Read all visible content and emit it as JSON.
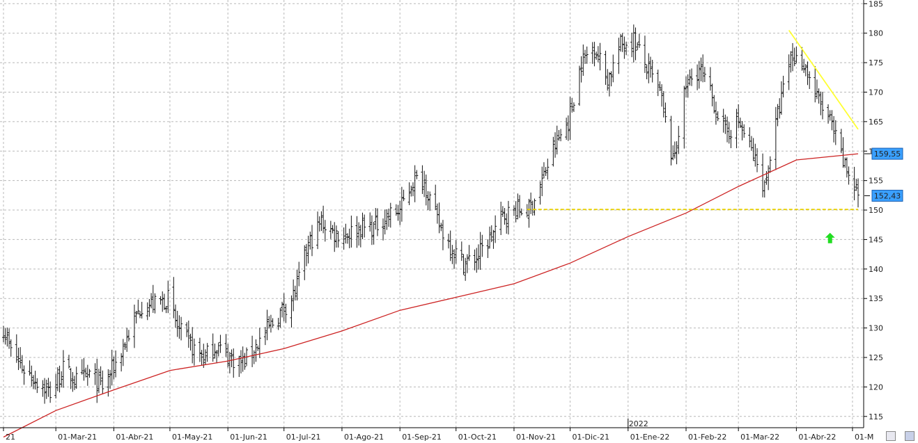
{
  "chart_data": {
    "type": "ohlc",
    "title": "",
    "xlabel": "",
    "ylabel": "",
    "ylim": [
      111,
      185
    ],
    "x_range": [
      "2021-02-01",
      "2022-05-04"
    ],
    "yticks": [
      115,
      120,
      125,
      130,
      135,
      140,
      145,
      150,
      155,
      160,
      165,
      170,
      175,
      180,
      185
    ],
    "x_tick_labels": [
      {
        "date": "2021-02-01",
        "label": "21"
      },
      {
        "date": "2021-03-01",
        "label": "01-Mar-21"
      },
      {
        "date": "2021-04-01",
        "label": "01-Abr-21"
      },
      {
        "date": "2021-05-01",
        "label": "01-May-21"
      },
      {
        "date": "2021-06-01",
        "label": "01-Jun-21"
      },
      {
        "date": "2021-07-01",
        "label": "01-Jul-21"
      },
      {
        "date": "2021-08-01",
        "label": "01-Ago-21"
      },
      {
        "date": "2021-09-01",
        "label": "01-Sep-21"
      },
      {
        "date": "2021-10-01",
        "label": "01-Oct-21"
      },
      {
        "date": "2021-11-01",
        "label": "01-Nov-21"
      },
      {
        "date": "2021-12-01",
        "label": "01-Dic-21"
      },
      {
        "date": "2022-01-01",
        "label": "01-Ene-22"
      },
      {
        "date": "2022-02-01",
        "label": "01-Feb-22"
      },
      {
        "date": "2022-03-01",
        "label": "01-Mar-22"
      },
      {
        "date": "2022-04-01",
        "label": "01-Abr-22"
      },
      {
        "date": "2022-05-01",
        "label": "01-M"
      }
    ],
    "year_marker": {
      "date": "2022-01-01",
      "label": "2022"
    },
    "price_keypoints": [
      [
        "2021-02-01",
        130
      ],
      [
        "2021-02-05",
        126
      ],
      [
        "2021-02-12",
        123
      ],
      [
        "2021-02-19",
        121
      ],
      [
        "2021-02-26",
        119
      ],
      [
        "2021-03-05",
        123
      ],
      [
        "2021-03-12",
        121
      ],
      [
        "2021-03-19",
        122
      ],
      [
        "2021-03-26",
        120
      ],
      [
        "2021-04-02",
        124
      ],
      [
        "2021-04-09",
        129
      ],
      [
        "2021-04-16",
        134
      ],
      [
        "2021-04-23",
        134
      ],
      [
        "2021-04-30",
        135
      ],
      [
        "2021-05-05",
        130
      ],
      [
        "2021-05-12",
        127
      ],
      [
        "2021-05-19",
        125
      ],
      [
        "2021-05-26",
        127
      ],
      [
        "2021-06-02",
        125
      ],
      [
        "2021-06-09",
        124
      ],
      [
        "2021-06-16",
        127
      ],
      [
        "2021-06-23",
        130
      ],
      [
        "2021-06-30",
        133
      ],
      [
        "2021-07-07",
        136
      ],
      [
        "2021-07-14",
        144
      ],
      [
        "2021-07-21",
        148
      ],
      [
        "2021-07-28",
        146
      ],
      [
        "2021-08-04",
        146
      ],
      [
        "2021-08-11",
        147
      ],
      [
        "2021-08-18",
        147
      ],
      [
        "2021-08-25",
        149
      ],
      [
        "2021-09-01",
        150
      ],
      [
        "2021-09-08",
        155
      ],
      [
        "2021-09-14",
        155
      ],
      [
        "2021-09-21",
        148
      ],
      [
        "2021-09-28",
        144
      ],
      [
        "2021-10-05",
        141
      ],
      [
        "2021-10-12",
        142
      ],
      [
        "2021-10-19",
        145
      ],
      [
        "2021-10-26",
        149
      ],
      [
        "2021-11-02",
        150
      ],
      [
        "2021-11-09",
        150
      ],
      [
        "2021-11-16",
        155
      ],
      [
        "2021-11-23",
        161
      ],
      [
        "2021-11-30",
        165
      ],
      [
        "2021-12-07",
        175
      ],
      [
        "2021-12-14",
        178
      ],
      [
        "2021-12-21",
        172
      ],
      [
        "2021-12-28",
        178
      ],
      [
        "2022-01-04",
        179
      ],
      [
        "2022-01-11",
        174
      ],
      [
        "2022-01-18",
        170
      ],
      [
        "2022-01-25",
        158
      ],
      [
        "2022-02-01",
        171
      ],
      [
        "2022-02-08",
        174
      ],
      [
        "2022-02-15",
        169
      ],
      [
        "2022-02-22",
        163
      ],
      [
        "2022-03-01",
        165
      ],
      [
        "2022-03-08",
        160
      ],
      [
        "2022-03-15",
        154
      ],
      [
        "2022-03-22",
        166
      ],
      [
        "2022-03-29",
        176
      ],
      [
        "2022-04-05",
        175
      ],
      [
        "2022-04-12",
        169
      ],
      [
        "2022-04-19",
        165
      ],
      [
        "2022-04-26",
        158
      ],
      [
        "2022-05-04",
        153
      ]
    ],
    "moving_average": {
      "color": "#cc2222",
      "points": [
        [
          "2021-02-01",
          111.5
        ],
        [
          "2021-03-01",
          116
        ],
        [
          "2021-04-01",
          119.5
        ],
        [
          "2021-05-01",
          122.8
        ],
        [
          "2021-06-01",
          124.4
        ],
        [
          "2021-07-01",
          126.5
        ],
        [
          "2021-08-01",
          129.5
        ],
        [
          "2021-09-01",
          133
        ],
        [
          "2021-10-01",
          135.2
        ],
        [
          "2021-11-01",
          137.5
        ],
        [
          "2021-12-01",
          141
        ],
        [
          "2022-01-01",
          145.5
        ],
        [
          "2022-02-01",
          149.5
        ],
        [
          "2022-03-01",
          154
        ],
        [
          "2022-04-01",
          158.5
        ],
        [
          "2022-05-04",
          159.55
        ]
      ]
    },
    "trendlines": [
      {
        "kind": "support",
        "color": "#e8d000",
        "dashed": true,
        "from": [
          "2021-11-08",
          150.1
        ],
        "to": [
          "2022-05-04",
          150.1
        ]
      },
      {
        "kind": "resistance",
        "color": "#ffff33",
        "dashed": false,
        "from": [
          "2022-03-28",
          180.5
        ],
        "to": [
          "2022-05-04",
          163.7
        ]
      }
    ],
    "price_tags": [
      {
        "value": 159.55,
        "label": "159,55"
      },
      {
        "value": 152.43,
        "label": "152,43"
      }
    ],
    "annotations": [
      {
        "type": "arrow-up",
        "color": "#22dd22",
        "date": "2022-04-19",
        "value": 145.2
      }
    ],
    "grid": true,
    "legend": "none"
  }
}
